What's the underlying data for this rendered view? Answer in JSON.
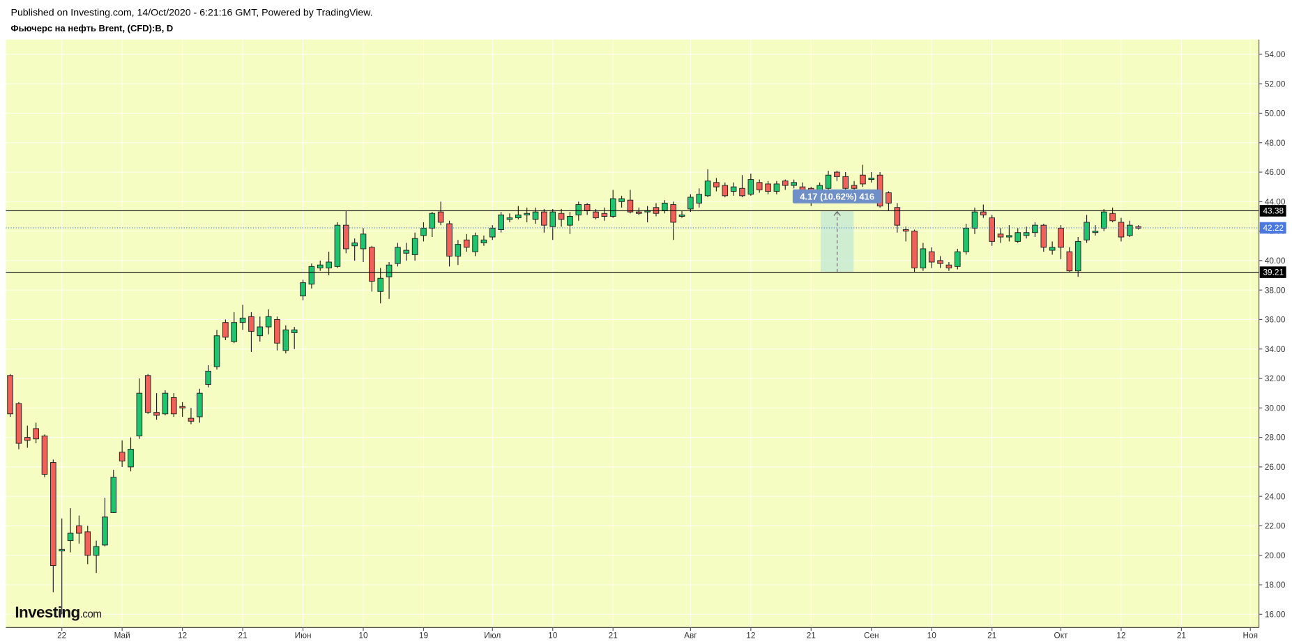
{
  "header": {
    "published": "Published on Investing.com, 14/Oct/2020 - 6:21:16 GMT, Powered by TradingView.",
    "symbol": "Фьючерс на нефть Brent, (CFD):B, D"
  },
  "logo": [
    "Investing",
    ".com"
  ],
  "chart_data": {
    "type": "candlestick",
    "open": [
      32.2,
      30.3,
      28.0,
      28.6,
      28.1,
      26.3,
      20.3,
      21.0,
      22.0,
      21.6,
      20.0,
      20.7,
      22.9,
      27.0,
      26.0,
      28.1,
      32.2,
      29.7,
      29.6,
      30.7,
      30.1,
      29.3,
      29.4,
      31.6,
      32.8,
      35.8,
      34.5,
      35.8,
      36.2,
      34.9,
      35.5,
      36.0,
      33.9,
      35.1,
      37.6,
      38.4,
      39.5,
      39.5,
      39.6,
      42.4,
      41.0,
      40.8,
      40.9,
      37.9,
      38.9,
      39.8,
      40.5,
      40.4,
      41.7,
      42.2,
      43.3,
      42.5,
      40.3,
      41.4,
      40.6,
      41.2,
      41.6,
      42.1,
      42.8,
      42.9,
      43.1,
      42.8,
      43.3,
      42.3,
      43.2,
      42.4,
      43.1,
      43.8,
      43.3,
      43.2,
      43.0,
      44.0,
      44.1,
      43.3,
      43.3,
      43.6,
      43.4,
      43.8,
      43.0,
      43.5,
      43.9,
      44.4,
      45.3,
      45.1,
      44.7,
      44.9,
      44.5,
      45.3,
      45.2,
      44.7,
      45.4,
      45.1,
      45.0,
      44.9,
      44.4,
      44.9,
      46.0,
      45.7,
      45.1,
      45.8,
      45.5,
      45.8,
      44.6,
      43.6,
      42.1,
      42.0,
      39.5,
      40.6,
      40.0,
      39.7,
      39.6,
      40.6,
      42.2,
      43.3,
      42.9,
      41.8,
      41.6,
      41.3,
      41.7,
      41.9,
      42.4,
      40.7,
      42.2,
      40.6,
      39.3,
      41.4,
      41.9,
      42.2,
      43.2,
      42.6,
      41.7,
      42.3
    ],
    "high": [
      32.3,
      30.4,
      28.8,
      29.0,
      28.2,
      26.5,
      22.5,
      23.2,
      22.7,
      22.0,
      21.0,
      23.9,
      25.8,
      27.8,
      28.0,
      32.0,
      32.3,
      31.0,
      31.2,
      31.0,
      30.4,
      30.0,
      31.3,
      32.9,
      35.3,
      36.0,
      36.5,
      37.0,
      36.5,
      36.2,
      36.7,
      36.2,
      35.6,
      35.5,
      38.7,
      39.8,
      40.0,
      40.6,
      42.6,
      43.4,
      41.5,
      42.2,
      41.0,
      39.5,
      39.9,
      41.2,
      41.2,
      41.9,
      42.6,
      43.3,
      44.0,
      42.7,
      41.4,
      41.8,
      41.9,
      41.7,
      42.4,
      43.3,
      43.2,
      43.7,
      43.6,
      43.6,
      43.5,
      43.5,
      43.5,
      43.3,
      44.0,
      43.9,
      43.5,
      43.6,
      44.8,
      44.4,
      44.8,
      43.6,
      43.7,
      43.9,
      44.1,
      44.0,
      43.4,
      44.5,
      44.9,
      46.2,
      45.6,
      45.3,
      45.3,
      45.8,
      45.9,
      45.5,
      45.4,
      45.4,
      45.5,
      45.5,
      45.3,
      45.0,
      45.3,
      46.1,
      46.1,
      46.0,
      45.4,
      46.5,
      46.0,
      46.0,
      44.7,
      43.9,
      42.3,
      42.1,
      41.2,
      40.9,
      40.3,
      39.9,
      40.8,
      42.5,
      43.6,
      43.8,
      43.1,
      42.2,
      42.4,
      42.2,
      42.3,
      42.6,
      42.5,
      41.3,
      42.4,
      40.9,
      41.6,
      43.1,
      42.4,
      43.5,
      43.6,
      42.9,
      42.7,
      42.4
    ],
    "low": [
      29.4,
      27.2,
      27.3,
      27.6,
      25.3,
      17.5,
      16.0,
      20.2,
      20.8,
      19.4,
      18.8,
      20.6,
      22.9,
      26.0,
      25.7,
      27.9,
      29.6,
      29.2,
      29.5,
      29.4,
      29.4,
      28.9,
      29.0,
      31.4,
      32.6,
      34.6,
      34.4,
      35.3,
      33.8,
      34.5,
      35.0,
      33.9,
      33.7,
      34.0,
      37.3,
      38.1,
      39.3,
      39.0,
      39.5,
      40.5,
      40.0,
      39.9,
      37.9,
      37.1,
      37.4,
      39.6,
      40.0,
      40.0,
      41.3,
      41.6,
      42.4,
      39.6,
      39.7,
      40.6,
      40.3,
      41.0,
      41.4,
      41.9,
      42.6,
      42.8,
      42.6,
      42.5,
      41.9,
      41.4,
      42.3,
      41.8,
      42.7,
      43.1,
      42.8,
      42.7,
      42.9,
      43.6,
      43.2,
      43.1,
      42.6,
      43.0,
      43.2,
      41.4,
      42.9,
      43.3,
      43.6,
      44.3,
      44.7,
      44.3,
      44.4,
      44.3,
      44.4,
      44.6,
      44.5,
      44.5,
      44.8,
      44.9,
      44.2,
      43.7,
      44.2,
      44.7,
      45.4,
      44.7,
      44.6,
      45.0,
      45.3,
      43.6,
      43.4,
      41.9,
      41.3,
      39.2,
      39.3,
      39.5,
      39.5,
      39.3,
      39.4,
      40.4,
      41.8,
      42.9,
      41.0,
      41.2,
      41.3,
      41.2,
      41.5,
      41.6,
      40.6,
      40.4,
      40.1,
      39.2,
      38.9,
      41.2,
      41.7,
      42.0,
      42.6,
      41.3,
      41.6,
      42.1
    ],
    "close": [
      29.6,
      27.6,
      27.8,
      27.9,
      25.5,
      19.3,
      20.4,
      21.5,
      21.5,
      20.0,
      20.6,
      22.6,
      25.3,
      26.4,
      27.2,
      31.0,
      29.7,
      29.5,
      31.0,
      29.6,
      30.0,
      29.1,
      31.0,
      32.5,
      34.9,
      34.8,
      35.8,
      36.1,
      35.2,
      35.5,
      36.2,
      34.4,
      35.3,
      35.3,
      38.5,
      39.6,
      39.7,
      39.9,
      42.4,
      40.8,
      41.2,
      41.8,
      38.6,
      38.8,
      39.7,
      40.9,
      40.7,
      41.5,
      42.2,
      43.2,
      42.6,
      40.3,
      41.1,
      40.9,
      41.7,
      41.4,
      42.2,
      43.1,
      42.9,
      43.1,
      43.2,
      43.3,
      42.4,
      43.3,
      42.8,
      43.0,
      43.8,
      43.4,
      42.9,
      43.0,
      44.2,
      44.2,
      43.3,
      43.2,
      43.4,
      43.2,
      43.9,
      42.6,
      43.1,
      44.3,
      44.5,
      45.4,
      45.0,
      44.4,
      45.0,
      44.4,
      45.5,
      44.8,
      44.7,
      45.2,
      45.1,
      45.3,
      44.7,
      44.3,
      45.1,
      45.8,
      45.7,
      44.9,
      44.9,
      45.2,
      45.6,
      43.7,
      43.9,
      42.4,
      42.0,
      39.5,
      40.8,
      39.9,
      39.8,
      39.5,
      40.6,
      42.2,
      43.3,
      43.1,
      41.3,
      41.6,
      41.7,
      41.9,
      41.9,
      42.4,
      40.9,
      40.9,
      40.9,
      39.3,
      41.3,
      42.6,
      42.0,
      43.3,
      42.7,
      41.6,
      42.4,
      42.2
    ],
    "up_color": "#1fc46f",
    "down_color": "#f2605a",
    "xlim": [
      -0.5,
      145
    ],
    "xticks": [
      {
        "value": 6,
        "label": "22"
      },
      {
        "value": 13,
        "label": "Май"
      },
      {
        "value": 20,
        "label": "12"
      },
      {
        "value": 27,
        "label": "21"
      },
      {
        "value": 34,
        "label": "Июн"
      },
      {
        "value": 41,
        "label": "10"
      },
      {
        "value": 48,
        "label": "19"
      },
      {
        "value": 56,
        "label": "Июл"
      },
      {
        "value": 63,
        "label": "10"
      },
      {
        "value": 70,
        "label": "21"
      },
      {
        "value": 79,
        "label": "Авг"
      },
      {
        "value": 86,
        "label": "12"
      },
      {
        "value": 93,
        "label": "21"
      },
      {
        "value": 100,
        "label": "Сен"
      },
      {
        "value": 107,
        "label": "10"
      },
      {
        "value": 114,
        "label": "21"
      },
      {
        "value": 122,
        "label": "Окт"
      },
      {
        "value": 129,
        "label": "12"
      },
      {
        "value": 136,
        "label": "21"
      },
      {
        "value": 144,
        "label": "Ноя"
      }
    ],
    "ylim": [
      15.1,
      55.0
    ],
    "yticks": [
      {
        "value": 16,
        "label": "16.00"
      },
      {
        "value": 18,
        "label": "18.00"
      },
      {
        "value": 20,
        "label": "20.00"
      },
      {
        "value": 22,
        "label": "22.00"
      },
      {
        "value": 24,
        "label": "24.00"
      },
      {
        "value": 26,
        "label": "26.00"
      },
      {
        "value": 28,
        "label": "28.00"
      },
      {
        "value": 30,
        "label": "30.00"
      },
      {
        "value": 32,
        "label": "32.00"
      },
      {
        "value": 34,
        "label": "34.00"
      },
      {
        "value": 36,
        "label": "36.00"
      },
      {
        "value": 38,
        "label": "38.00"
      },
      {
        "value": 40,
        "label": "40.00"
      },
      {
        "value": 42,
        "label": "42.00"
      },
      {
        "value": 44,
        "label": "44.00"
      },
      {
        "value": 46,
        "label": "46.00"
      },
      {
        "value": 48,
        "label": "48.00"
      },
      {
        "value": 50,
        "label": "50.00"
      },
      {
        "value": 52,
        "label": "52.00"
      },
      {
        "value": 54,
        "label": "54.00"
      }
    ],
    "grid": true,
    "levels": [
      {
        "value": 43.38,
        "color": "#000000",
        "style": "solid"
      },
      {
        "value": 42.22,
        "color": "#4a78e0",
        "style": "dotted"
      },
      {
        "value": 39.21,
        "color": "#000000",
        "style": "solid"
      }
    ],
    "measure_label": "4.17 (10.62%) 416"
  }
}
